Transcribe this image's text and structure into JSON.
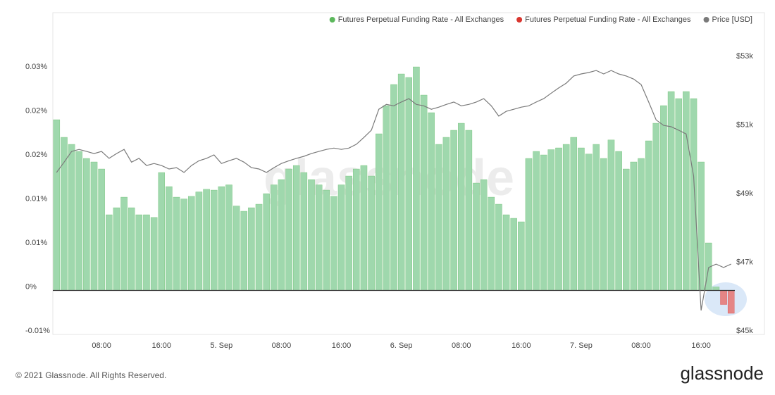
{
  "chart_data": {
    "type": "bar",
    "legend": "top-right",
    "watermark": "glassnode",
    "footer": "© 2021 Glassnode. All Rights Reserved.",
    "logo": "glassnode",
    "xlim": [
      -0.5,
      90.5
    ],
    "xticks": [
      {
        "value": 6,
        "label": "08:00"
      },
      {
        "value": 14,
        "label": "16:00"
      },
      {
        "value": 22,
        "label": "5. Sep"
      },
      {
        "value": 30,
        "label": "08:00"
      },
      {
        "value": 38,
        "label": "16:00"
      },
      {
        "value": 46,
        "label": "6. Sep"
      },
      {
        "value": 54,
        "label": "08:00"
      },
      {
        "value": 62,
        "label": "16:00"
      },
      {
        "value": 70,
        "label": "7. Sep"
      },
      {
        "value": 78,
        "label": "08:00"
      },
      {
        "value": 86,
        "label": "16:00"
      }
    ],
    "ylim": [
      -0.005,
      0.031
    ],
    "yticks": [
      {
        "value": 0.025,
        "label": "0.03%"
      },
      {
        "value": 0.02,
        "label": "0.02%"
      },
      {
        "value": 0.015,
        "label": "0.02%"
      },
      {
        "value": 0.01,
        "label": "0.01%"
      },
      {
        "value": 0.005,
        "label": "0.01%"
      },
      {
        "value": 0,
        "label": "0%"
      },
      {
        "value": -0.005,
        "label": "-0.01%"
      }
    ],
    "y2lim": [
      44900,
      54130
    ],
    "y2ticks": [
      {
        "value": 53000,
        "label": "$53k"
      },
      {
        "value": 51000,
        "label": "$51k"
      },
      {
        "value": 49000,
        "label": "$49k"
      },
      {
        "value": 47000,
        "label": "$47k"
      },
      {
        "value": 45000,
        "label": "$45k"
      }
    ],
    "series": [
      {
        "name": "Futures Perpetual Funding Rate - All Exchanges",
        "color": "#5cb85c",
        "fill": "#9fd8ad",
        "type": "bar",
        "values": [
          0.0194,
          0.0174,
          0.0166,
          0.0158,
          0.015,
          0.0146,
          0.0138,
          0.0086,
          0.0094,
          0.0106,
          0.0094,
          0.0086,
          0.0086,
          0.0083,
          0.0134,
          0.0118,
          0.0106,
          0.0104,
          0.0107,
          0.0112,
          0.0115,
          0.0114,
          0.0118,
          0.012,
          0.0096,
          0.009,
          0.0094,
          0.0098,
          0.011,
          0.012,
          0.0126,
          0.0138,
          0.0142,
          0.0134,
          0.0126,
          0.012,
          0.0114,
          0.0107,
          0.012,
          0.013,
          0.0138,
          0.0142,
          0.013,
          0.0178,
          0.021,
          0.0234,
          0.0246,
          0.0242,
          0.0254,
          0.0222,
          0.0202,
          0.0166,
          0.0174,
          0.0182,
          0.019,
          0.0182,
          0.0122,
          0.0126,
          0.0106,
          0.0098,
          0.0086,
          0.0082,
          0.0078,
          0.015,
          0.0158,
          0.0154,
          0.016,
          0.0162,
          0.0166,
          0.0174,
          0.0162,
          0.0155,
          0.0166,
          0.015,
          0.0171,
          0.0158,
          0.0138,
          0.0146,
          0.015,
          0.017,
          0.019,
          0.021,
          0.0226,
          0.0218,
          0.0226,
          0.0218,
          0.0146,
          0.0054,
          0.0004,
          null,
          null
        ]
      },
      {
        "name": "Futures Perpetual Funding Rate - All Exchanges",
        "color": "#d9362f",
        "fill": "#e58585",
        "type": "bar",
        "values": [
          null,
          null,
          null,
          null,
          null,
          null,
          null,
          null,
          null,
          null,
          null,
          null,
          null,
          null,
          null,
          null,
          null,
          null,
          null,
          null,
          null,
          null,
          null,
          null,
          null,
          null,
          null,
          null,
          null,
          null,
          null,
          null,
          null,
          null,
          null,
          null,
          null,
          null,
          null,
          null,
          null,
          null,
          null,
          null,
          null,
          null,
          null,
          null,
          null,
          null,
          null,
          null,
          null,
          null,
          null,
          null,
          null,
          null,
          null,
          null,
          null,
          null,
          null,
          null,
          null,
          null,
          null,
          null,
          null,
          null,
          null,
          null,
          null,
          null,
          null,
          null,
          null,
          null,
          null,
          null,
          null,
          null,
          null,
          null,
          null,
          null,
          null,
          null,
          null,
          -0.0016,
          -0.0026
        ]
      },
      {
        "name": "Price [USD]",
        "color": "#7a7a7a",
        "type": "line",
        "axis": "y2",
        "values": [
          49620,
          49920,
          50230,
          50290,
          50230,
          50170,
          50230,
          50030,
          50170,
          50290,
          49920,
          50030,
          49820,
          49880,
          49820,
          49720,
          49760,
          49620,
          49820,
          49960,
          50030,
          50130,
          49880,
          49960,
          50030,
          49920,
          49760,
          49720,
          49620,
          49760,
          49880,
          49960,
          50030,
          50090,
          50170,
          50230,
          50290,
          50330,
          50290,
          50330,
          50440,
          50640,
          50850,
          51460,
          51600,
          51560,
          51670,
          51770,
          51600,
          51560,
          51460,
          51520,
          51600,
          51670,
          51560,
          51600,
          51670,
          51770,
          51560,
          51260,
          51400,
          51460,
          51520,
          51560,
          51670,
          51770,
          51930,
          52080,
          52220,
          52430,
          52490,
          52530,
          52590,
          52490,
          52590,
          52490,
          52430,
          52340,
          52180,
          51670,
          51150,
          50990,
          50950,
          50850,
          50740,
          49510,
          45600,
          46850,
          46950,
          46850,
          46950
        ]
      }
    ]
  }
}
